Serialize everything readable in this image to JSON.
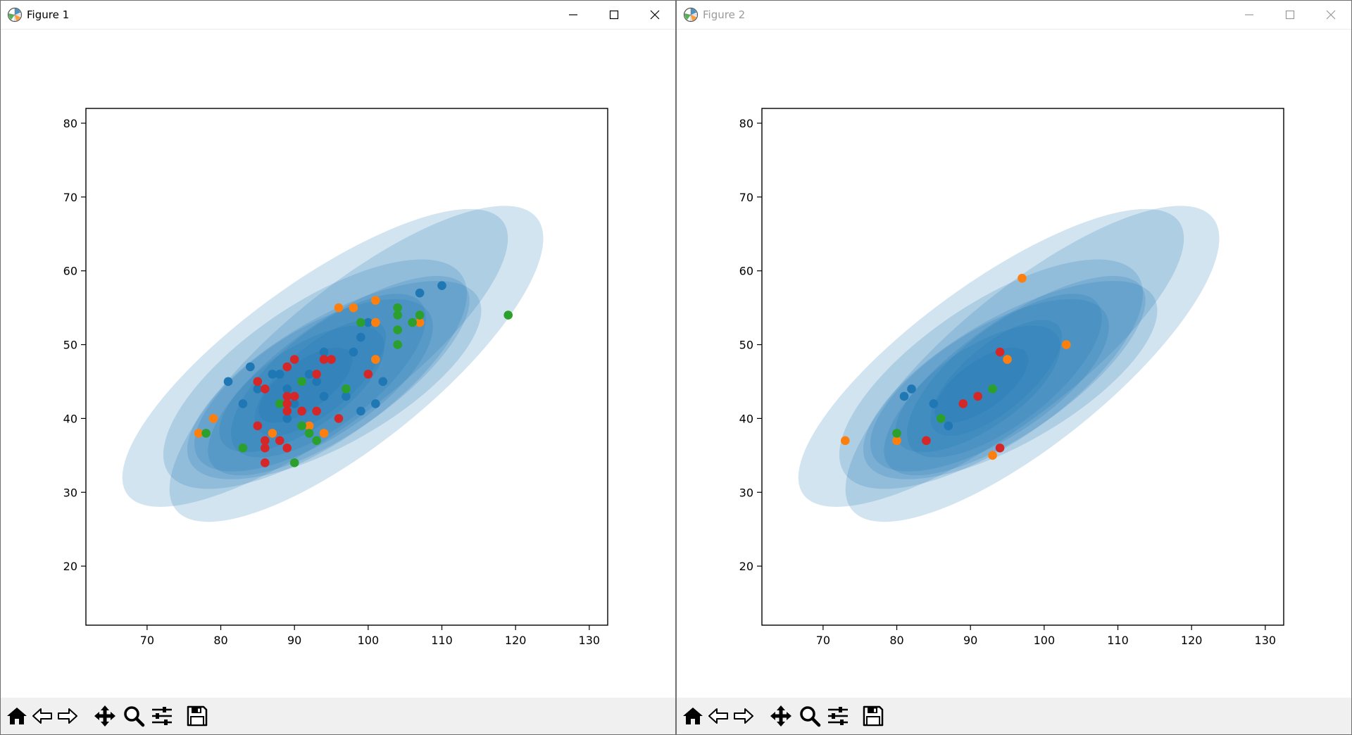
{
  "windows": [
    {
      "title": "Figure 1",
      "active": true,
      "chart_data": {
        "type": "scatter",
        "xlim": [
          61.7,
          132.5
        ],
        "ylim": [
          12,
          82
        ],
        "xticks": [
          70,
          80,
          90,
          100,
          110,
          120,
          130
        ],
        "yticks": [
          20,
          30,
          40,
          50,
          60,
          70,
          80
        ],
        "grid": false,
        "ellipse_color": "#1f77b4",
        "ellipse_opacity": 0.2,
        "ellipses": [
          {
            "cx": 92.8,
            "cy": 48.2,
            "rx": 31.5,
            "ry": 10.0,
            "angle": 36
          },
          {
            "cx": 98.4,
            "cy": 47.4,
            "rx": 31.5,
            "ry": 10.5,
            "angle": 39
          },
          {
            "cx": 92.8,
            "cy": 46.0,
            "rx": 24.0,
            "ry": 9.5,
            "angle": 34
          },
          {
            "cx": 95.4,
            "cy": 45.2,
            "rx": 22.5,
            "ry": 8.5,
            "angle": 30
          },
          {
            "cx": 96.0,
            "cy": 45.8,
            "rx": 21.0,
            "ry": 7.5,
            "angle": 35
          },
          {
            "cx": 92.6,
            "cy": 44.5,
            "rx": 18.5,
            "ry": 7.5,
            "angle": 32
          },
          {
            "cx": 94.6,
            "cy": 45.8,
            "rx": 16.0,
            "ry": 6.5,
            "angle": 38
          },
          {
            "cx": 91.0,
            "cy": 44.0,
            "rx": 13.0,
            "ry": 5.5,
            "angle": 34
          },
          {
            "cx": 93.5,
            "cy": 45.5,
            "rx": 11.0,
            "ry": 4.5,
            "angle": 40
          },
          {
            "cx": 91.5,
            "cy": 44.5,
            "rx": 7.5,
            "ry": 3.2,
            "angle": 36
          }
        ],
        "series": [
          {
            "color": "#1f77b4",
            "points": [
              [
                81,
                45
              ],
              [
                83,
                42
              ],
              [
                84,
                47
              ],
              [
                85,
                44
              ],
              [
                87,
                46
              ],
              [
                88,
                46
              ],
              [
                89,
                40
              ],
              [
                90,
                42
              ],
              [
                92,
                46
              ],
              [
                93,
                45
              ],
              [
                94,
                49
              ],
              [
                94,
                43
              ],
              [
                97,
                43
              ],
              [
                98,
                49
              ],
              [
                99,
                51
              ],
              [
                99,
                41
              ],
              [
                100,
                53
              ],
              [
                101,
                42
              ],
              [
                102,
                45
              ],
              [
                107,
                57
              ],
              [
                110,
                58
              ],
              [
                89,
                44
              ],
              [
                91,
                41
              ]
            ]
          },
          {
            "color": "#ff7f0e",
            "points": [
              [
                77,
                38
              ],
              [
                79,
                40
              ],
              [
                87,
                38
              ],
              [
                92,
                39
              ],
              [
                94,
                38
              ],
              [
                96,
                55
              ],
              [
                98,
                55
              ],
              [
                101,
                56
              ],
              [
                101,
                53
              ],
              [
                101,
                48
              ],
              [
                107,
                53
              ]
            ]
          },
          {
            "color": "#2ca02c",
            "points": [
              [
                78,
                38
              ],
              [
                83,
                36
              ],
              [
                88,
                42
              ],
              [
                90,
                34
              ],
              [
                91,
                45
              ],
              [
                91,
                39
              ],
              [
                92,
                38
              ],
              [
                93,
                37
              ],
              [
                97,
                44
              ],
              [
                99,
                53
              ],
              [
                104,
                55
              ],
              [
                104,
                54
              ],
              [
                104,
                52
              ],
              [
                104,
                50
              ],
              [
                106,
                53
              ],
              [
                107,
                54
              ],
              [
                119,
                54
              ]
            ]
          },
          {
            "color": "#d62728",
            "points": [
              [
                85,
                45
              ],
              [
                85,
                39
              ],
              [
                86,
                44
              ],
              [
                86,
                37
              ],
              [
                86,
                36
              ],
              [
                86,
                34
              ],
              [
                88,
                37
              ],
              [
                89,
                47
              ],
              [
                89,
                43
              ],
              [
                89,
                42
              ],
              [
                89,
                41
              ],
              [
                89,
                36
              ],
              [
                90,
                48
              ],
              [
                90,
                43
              ],
              [
                91,
                41
              ],
              [
                93,
                46
              ],
              [
                93,
                41
              ],
              [
                94,
                48
              ],
              [
                95,
                48
              ],
              [
                96,
                40
              ],
              [
                100,
                46
              ]
            ]
          }
        ]
      }
    },
    {
      "title": "Figure 2",
      "active": false,
      "chart_data": {
        "type": "scatter",
        "xlim": [
          61.7,
          132.5
        ],
        "ylim": [
          12,
          82
        ],
        "xticks": [
          70,
          80,
          90,
          100,
          110,
          120,
          130
        ],
        "yticks": [
          20,
          30,
          40,
          50,
          60,
          70,
          80
        ],
        "grid": false,
        "ellipse_color": "#1f77b4",
        "ellipse_opacity": 0.2,
        "ellipses": [
          {
            "cx": 92.8,
            "cy": 48.2,
            "rx": 31.5,
            "ry": 10.0,
            "angle": 36
          },
          {
            "cx": 98.4,
            "cy": 47.4,
            "rx": 31.5,
            "ry": 10.5,
            "angle": 39
          },
          {
            "cx": 92.8,
            "cy": 46.0,
            "rx": 24.0,
            "ry": 9.5,
            "angle": 34
          },
          {
            "cx": 95.4,
            "cy": 45.2,
            "rx": 22.5,
            "ry": 8.5,
            "angle": 30
          },
          {
            "cx": 96.0,
            "cy": 45.8,
            "rx": 21.0,
            "ry": 7.5,
            "angle": 35
          },
          {
            "cx": 92.6,
            "cy": 44.5,
            "rx": 18.5,
            "ry": 7.5,
            "angle": 32
          },
          {
            "cx": 94.6,
            "cy": 45.8,
            "rx": 16.0,
            "ry": 6.5,
            "angle": 38
          },
          {
            "cx": 91.0,
            "cy": 44.0,
            "rx": 13.0,
            "ry": 5.5,
            "angle": 34
          },
          {
            "cx": 93.5,
            "cy": 45.5,
            "rx": 11.0,
            "ry": 4.5,
            "angle": 40
          },
          {
            "cx": 91.5,
            "cy": 44.5,
            "rx": 7.5,
            "ry": 3.2,
            "angle": 36
          }
        ],
        "series": [
          {
            "color": "#1f77b4",
            "points": [
              [
                81,
                43
              ],
              [
                82,
                44
              ],
              [
                85,
                42
              ],
              [
                87,
                39
              ]
            ]
          },
          {
            "color": "#ff7f0e",
            "points": [
              [
                73,
                37
              ],
              [
                80,
                37
              ],
              [
                93,
                35
              ],
              [
                95,
                48
              ],
              [
                97,
                59
              ],
              [
                103,
                50
              ]
            ]
          },
          {
            "color": "#2ca02c",
            "points": [
              [
                80,
                38
              ],
              [
                86,
                40
              ],
              [
                93,
                44
              ]
            ]
          },
          {
            "color": "#d62728",
            "points": [
              [
                84,
                37
              ],
              [
                89,
                42
              ],
              [
                91,
                43
              ],
              [
                94,
                49
              ],
              [
                94,
                36
              ]
            ]
          }
        ]
      }
    }
  ],
  "toolbar_icons": [
    "home-icon",
    "back-icon",
    "forward-icon",
    "pan-icon",
    "zoom-icon",
    "configure-icon",
    "save-icon"
  ]
}
